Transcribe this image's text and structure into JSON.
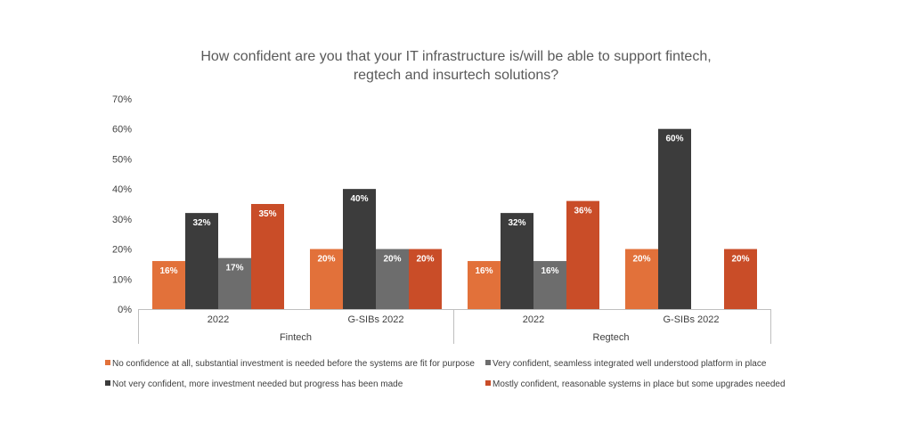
{
  "chart_data": {
    "type": "bar",
    "title_lines": [
      "How confident are you that your IT infrastructure is/will be able to support fintech,",
      "regtech and insurtech solutions?"
    ],
    "ylim": [
      0,
      70
    ],
    "yticks": [
      "0%",
      "10%",
      "20%",
      "30%",
      "40%",
      "50%",
      "60%",
      "70%"
    ],
    "groups": [
      "Fintech",
      "Regtech"
    ],
    "categories": [
      {
        "label": "2022",
        "group": "Fintech"
      },
      {
        "label": "G-SIBs 2022",
        "group": "Fintech"
      },
      {
        "label": "2022",
        "group": "Regtech"
      },
      {
        "label": "G-SIBs 2022",
        "group": "Regtech"
      }
    ],
    "series": [
      {
        "name": "No confidence at all, substantial investment is needed before the systems are fit for purpose",
        "color": "#e2713a",
        "values": [
          16,
          20,
          16,
          20
        ]
      },
      {
        "name": "Not very confident, more investment needed but progress has been made",
        "color": "#3c3c3c",
        "values": [
          32,
          40,
          32,
          60
        ]
      },
      {
        "name": "Very confident, seamless integrated well understood platform in place",
        "color": "#6d6d6d",
        "values": [
          17,
          20,
          16,
          null
        ]
      },
      {
        "name": "Mostly confident, reasonable systems in place but some upgrades needed",
        "color": "#c94d28",
        "values": [
          35,
          20,
          36,
          20
        ]
      }
    ],
    "value_suffix": "%",
    "legend_position": "bottom"
  }
}
